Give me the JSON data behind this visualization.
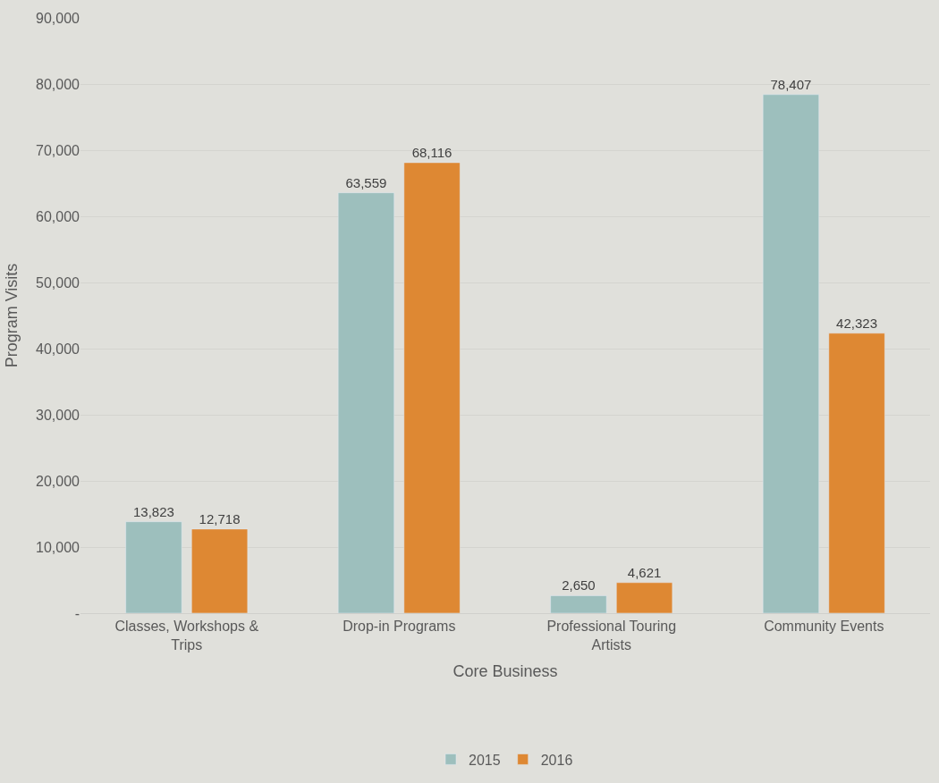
{
  "chart_data": {
    "type": "bar",
    "xlabel": "Core Business",
    "ylabel": "Program Visits",
    "categories": [
      "Classes, Workshops & Trips",
      "Drop-in Programs",
      "Professional Touring Artists",
      "Community Events"
    ],
    "series": [
      {
        "name": "2015",
        "color": "#9dbfbd",
        "values": [
          13823,
          63559,
          2650,
          78407
        ],
        "value_labels": [
          "13,823",
          "63,559",
          "2,650",
          "78,407"
        ]
      },
      {
        "name": "2016",
        "color": "#de8833",
        "values": [
          12718,
          68116,
          4621,
          42323
        ],
        "value_labels": [
          "12,718",
          "68,116",
          "4,621",
          "42,323"
        ]
      }
    ],
    "ylim": [
      0,
      90000
    ],
    "yticks": [
      {
        "value": 0,
        "label": "-"
      },
      {
        "value": 10000,
        "label": "10,000"
      },
      {
        "value": 20000,
        "label": "20,000"
      },
      {
        "value": 30000,
        "label": "30,000"
      },
      {
        "value": 40000,
        "label": "40,000"
      },
      {
        "value": 50000,
        "label": "50,000"
      },
      {
        "value": 60000,
        "label": "60,000"
      },
      {
        "value": 70000,
        "label": "70,000"
      },
      {
        "value": 80000,
        "label": "80,000"
      },
      {
        "value": 90000,
        "label": "90,000"
      }
    ],
    "grid": "y",
    "legend": "bottom"
  }
}
